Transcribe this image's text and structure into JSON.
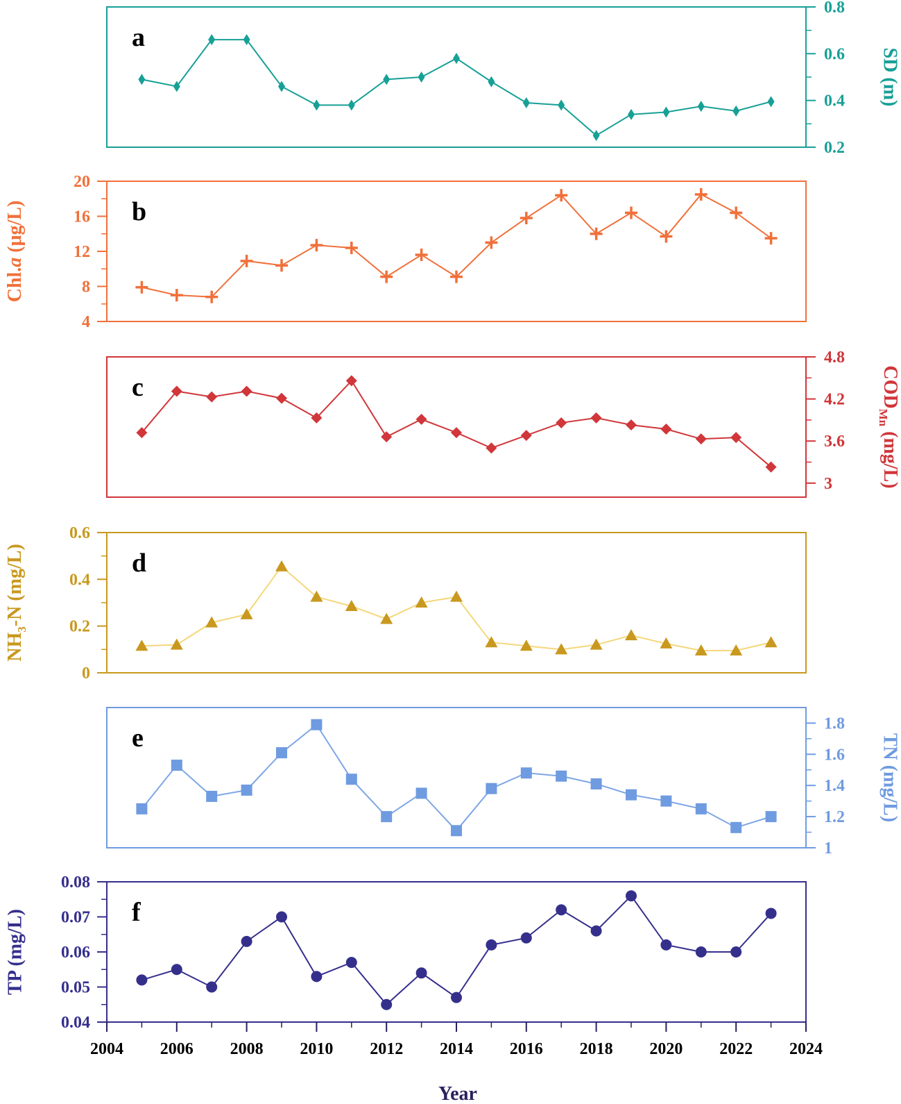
{
  "chart_data": [
    {
      "panel": "a",
      "type": "line",
      "marker": "thin-diamond",
      "color": "#17a096",
      "yaxis_side": "right",
      "ylabel": "SD (m)",
      "ylim": [
        0.2,
        0.8
      ],
      "yticks": [
        0.2,
        0.4,
        0.6,
        0.8
      ],
      "ytick_labels": [
        "0.2",
        "0.4",
        "0.6",
        "0.8"
      ],
      "x": [
        2005,
        2006,
        2007,
        2008,
        2009,
        2010,
        2011,
        2012,
        2013,
        2014,
        2015,
        2016,
        2017,
        2018,
        2019,
        2020,
        2021,
        2022,
        2023
      ],
      "values": [
        0.49,
        0.46,
        0.66,
        0.66,
        0.46,
        0.38,
        0.38,
        0.49,
        0.5,
        0.58,
        0.48,
        0.39,
        0.38,
        0.25,
        0.34,
        0.35,
        0.375,
        0.355,
        0.395
      ]
    },
    {
      "panel": "b",
      "type": "line",
      "marker": "plus",
      "color": "#f0703a",
      "yaxis_side": "left",
      "ylabel_main": "Chl.",
      "ylabel_italic": "a",
      "ylabel_rest": " (μg/L)",
      "ylim": [
        4,
        20
      ],
      "yticks": [
        4,
        8,
        12,
        16,
        20
      ],
      "ytick_labels": [
        "4",
        "8",
        "12",
        "16",
        "20"
      ],
      "x": [
        2005,
        2006,
        2007,
        2008,
        2009,
        2010,
        2011,
        2012,
        2013,
        2014,
        2015,
        2016,
        2017,
        2018,
        2019,
        2020,
        2021,
        2022,
        2023
      ],
      "values": [
        7.9,
        7.0,
        6.8,
        10.9,
        10.4,
        12.7,
        12.4,
        9.1,
        11.6,
        9.1,
        13.0,
        15.8,
        18.4,
        14.0,
        16.4,
        13.7,
        18.5,
        16.4,
        13.5
      ]
    },
    {
      "panel": "c",
      "type": "line",
      "marker": "diamond",
      "color": "#d0363a",
      "yaxis_side": "right",
      "ylabel_main": "COD",
      "ylabel_sub": "Mn",
      "ylabel_rest": " (mg/L)",
      "ylim": [
        2.8,
        4.8
      ],
      "yticks": [
        3,
        3.6,
        4.2,
        4.8
      ],
      "ytick_labels": [
        "3",
        "3.6",
        "4.2",
        "4.8"
      ],
      "x": [
        2005,
        2006,
        2007,
        2008,
        2009,
        2010,
        2011,
        2012,
        2013,
        2014,
        2015,
        2016,
        2017,
        2018,
        2019,
        2020,
        2021,
        2022,
        2023
      ],
      "values": [
        3.72,
        4.31,
        4.23,
        4.31,
        4.21,
        3.93,
        4.46,
        3.66,
        3.91,
        3.72,
        3.5,
        3.68,
        3.86,
        3.93,
        3.83,
        3.77,
        3.63,
        3.65,
        3.23
      ]
    },
    {
      "panel": "d",
      "type": "line",
      "marker": "triangle",
      "color": "#c9981e",
      "line_color": "#f5d77a",
      "yaxis_side": "left",
      "ylabel_main": "NH",
      "ylabel_sub": "3",
      "ylabel_rest": "-N (mg/L)",
      "ylim": [
        0,
        0.6
      ],
      "yticks": [
        0,
        0.2,
        0.4,
        0.6
      ],
      "ytick_labels": [
        "0",
        "0.2",
        "0.4",
        "0.6"
      ],
      "x": [
        2005,
        2006,
        2007,
        2008,
        2009,
        2010,
        2011,
        2012,
        2013,
        2014,
        2015,
        2016,
        2017,
        2018,
        2019,
        2020,
        2021,
        2022,
        2023
      ],
      "values": [
        0.115,
        0.12,
        0.215,
        0.25,
        0.455,
        0.325,
        0.285,
        0.23,
        0.3,
        0.325,
        0.13,
        0.115,
        0.1,
        0.12,
        0.16,
        0.125,
        0.095,
        0.095,
        0.13
      ]
    },
    {
      "panel": "e",
      "type": "line",
      "marker": "square",
      "color": "#6f9be0",
      "line_color": "#7ea6e6",
      "yaxis_side": "right",
      "ylabel": "TN (mg/L)",
      "ylim": [
        1.0,
        1.9
      ],
      "yticks": [
        1,
        1.2,
        1.4,
        1.6,
        1.8
      ],
      "ytick_labels": [
        "1",
        "1.2",
        "1.4",
        "1.6",
        "1.8"
      ],
      "x": [
        2005,
        2006,
        2007,
        2008,
        2009,
        2010,
        2011,
        2012,
        2013,
        2014,
        2015,
        2016,
        2017,
        2018,
        2019,
        2020,
        2021,
        2022,
        2023
      ],
      "values": [
        1.25,
        1.53,
        1.33,
        1.37,
        1.61,
        1.79,
        1.44,
        1.2,
        1.35,
        1.11,
        1.38,
        1.48,
        1.46,
        1.41,
        1.34,
        1.3,
        1.25,
        1.13,
        1.2
      ]
    },
    {
      "panel": "f",
      "type": "line",
      "marker": "circle",
      "color": "#352f8c",
      "yaxis_side": "left",
      "ylabel": "TP (mg/L)",
      "ylim": [
        0.04,
        0.08
      ],
      "yticks": [
        0.04,
        0.05,
        0.06,
        0.07,
        0.08
      ],
      "ytick_labels": [
        "0.04",
        "0.05",
        "0.06",
        "0.07",
        "0.08"
      ],
      "x": [
        2005,
        2006,
        2007,
        2008,
        2009,
        2010,
        2011,
        2012,
        2013,
        2014,
        2015,
        2016,
        2017,
        2018,
        2019,
        2020,
        2021,
        2022,
        2023
      ],
      "values": [
        0.052,
        0.055,
        0.05,
        0.063,
        0.07,
        0.053,
        0.057,
        0.045,
        0.054,
        0.047,
        0.062,
        0.064,
        0.072,
        0.066,
        0.076,
        0.062,
        0.06,
        0.06,
        0.071
      ]
    }
  ],
  "xaxis": {
    "label": "Year",
    "xlim": [
      2004,
      2024
    ],
    "ticks": [
      2004,
      2006,
      2008,
      2010,
      2012,
      2014,
      2016,
      2018,
      2020,
      2022,
      2024
    ],
    "tick_labels": [
      "2004",
      "2006",
      "2008",
      "2010",
      "2012",
      "2014",
      "2016",
      "2018",
      "2020",
      "2022",
      "2024"
    ]
  },
  "axis_color_x": "#2a1f5c"
}
